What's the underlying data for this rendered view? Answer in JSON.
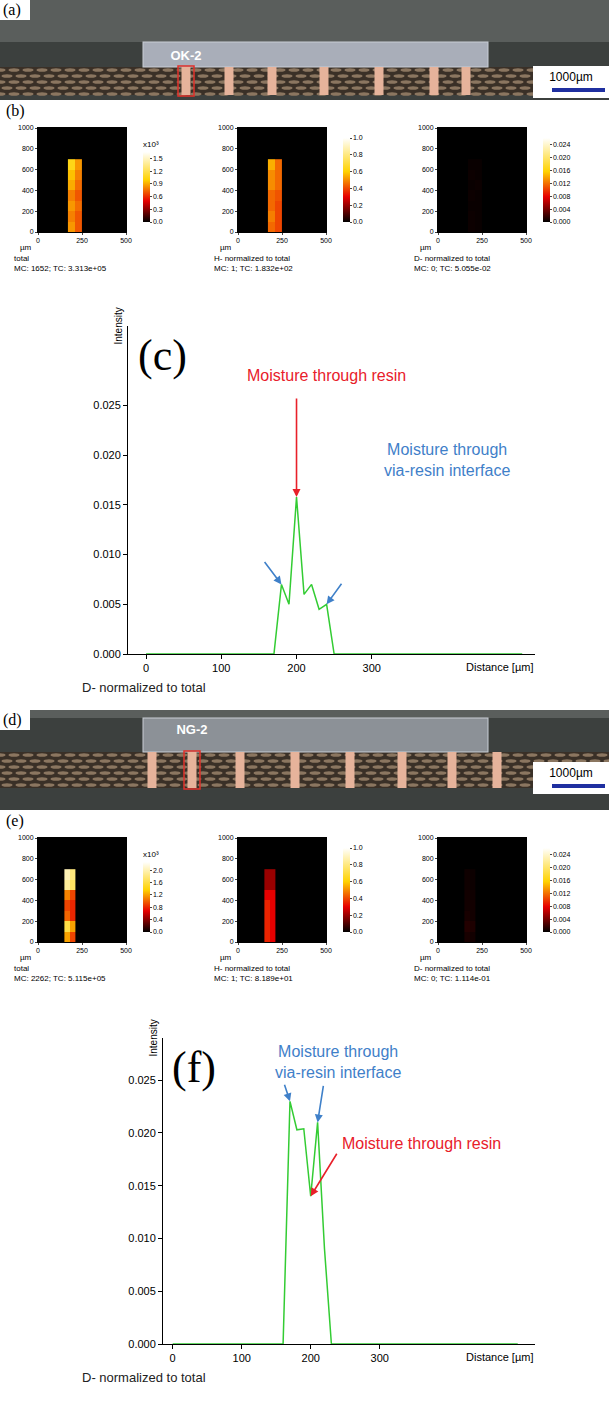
{
  "chart_data": [
    {
      "type": "photo",
      "label": "(a)",
      "sample": "OK-2",
      "scale_bar": "1000µm"
    },
    {
      "type": "heatmap",
      "label": "(b)",
      "panels": [
        {
          "caption": [
            "total",
            "MC: 1652; TC: 3.313e+05"
          ],
          "colorbar_title": "x10³",
          "x": [
            190,
            230
          ],
          "y": [
            50,
            150,
            250,
            350,
            450,
            550,
            650
          ],
          "z": [
            [
              0.85,
              0.7
            ],
            [
              0.8,
              0.7
            ],
            [
              0.85,
              0.75
            ],
            [
              0.8,
              0.7
            ],
            [
              0.9,
              0.75
            ],
            [
              0.95,
              0.8
            ],
            [
              1.05,
              0.85
            ]
          ],
          "zlim": [
            0,
            1.65
          ],
          "zticks": [
            {
              "value": 0,
              "label": "0.0"
            },
            0.3,
            0.6,
            0.9,
            1.2,
            1.5
          ],
          "xlabel": "µm",
          "xlim": [
            0,
            500
          ],
          "xticks": [
            0,
            250,
            500
          ],
          "ylim": [
            0,
            1000
          ],
          "yticks": [
            0,
            200,
            400,
            600,
            800,
            1000
          ]
        },
        {
          "caption": [
            "H- normalized to total",
            "MC: 1; TC: 1.832e+02"
          ],
          "x": [
            190,
            230
          ],
          "y": [
            50,
            150,
            250,
            350,
            450,
            550,
            650
          ],
          "z": [
            [
              0.45,
              0.4
            ],
            [
              0.48,
              0.4
            ],
            [
              0.45,
              0.4
            ],
            [
              0.45,
              0.42
            ],
            [
              0.5,
              0.45
            ],
            [
              0.5,
              0.45
            ],
            [
              0.55,
              0.45
            ]
          ],
          "zlim": [
            0,
            1
          ],
          "zticks": [
            {
              "value": 0,
              "label": "0.0"
            },
            0.2,
            0.4,
            0.6,
            0.8,
            {
              "value": 1,
              "label": "1.0"
            }
          ],
          "xlabel": "µm",
          "xlim": [
            0,
            500
          ],
          "xticks": [
            0,
            250,
            500
          ],
          "ylim": [
            0,
            1000
          ],
          "yticks": [
            0,
            200,
            400,
            600,
            800,
            1000
          ]
        },
        {
          "caption": [
            "D- normalized to total",
            "MC: 0; TC: 5.055e-02"
          ],
          "x": [
            190,
            230
          ],
          "y": [
            50,
            150,
            250,
            350,
            450,
            550,
            650
          ],
          "z": [
            [
              0.0004,
              0.0003
            ],
            [
              0.0004,
              0.0003
            ],
            [
              0.0003,
              0.0003
            ],
            [
              0.0004,
              0.0003
            ],
            [
              0.0003,
              0.0004
            ],
            [
              0.0004,
              0.0003
            ],
            [
              0.0003,
              0.0003
            ]
          ],
          "zlim": [
            0,
            0.026
          ],
          "zticks": [
            {
              "value": 0,
              "label": "0.000"
            },
            0.004,
            0.008,
            0.012,
            0.016,
            {
              "value": 0.02,
              "label": "0.020"
            },
            0.024
          ],
          "xlabel": "µm",
          "xlim": [
            0,
            500
          ],
          "xticks": [
            0,
            250,
            500
          ],
          "ylim": [
            0,
            1000
          ],
          "yticks": [
            0,
            200,
            400,
            600,
            800,
            1000
          ]
        }
      ]
    },
    {
      "type": "line",
      "label": "(c)",
      "title": "D- normalized to total",
      "xlabel": "Distance [µm]",
      "ylabel": "Intensity",
      "x": [
        0,
        170,
        180,
        190,
        200,
        210,
        220,
        230,
        240,
        250,
        500
      ],
      "values": [
        0,
        0,
        0.007,
        0.005,
        0.0158,
        0.006,
        0.007,
        0.0045,
        0.005,
        0,
        0
      ],
      "color": "#33cc33",
      "grid": false,
      "xlim": [
        -24,
        517
      ],
      "xticks": [
        0,
        100,
        200,
        300
      ],
      "ylim": [
        0,
        0.033
      ],
      "yticks": [
        {
          "value": 0,
          "label": "0.000"
        },
        0.005,
        {
          "value": 0.01,
          "label": "0.010"
        },
        0.015,
        {
          "value": 0.02,
          "label": "0.020"
        },
        0.025
      ],
      "annotations": [
        {
          "text": "Moisture through resin",
          "color": "#e8202a"
        },
        {
          "text": "Moisture through via-resin interface",
          "color": "#3f80c9"
        }
      ]
    },
    {
      "type": "photo",
      "label": "(d)",
      "sample": "NG-2",
      "scale_bar": "1000µm"
    },
    {
      "type": "heatmap",
      "label": "(e)",
      "panels": [
        {
          "caption": [
            "total",
            "MC: 2262; TC: 5.115e+05"
          ],
          "colorbar_title": "x10³",
          "x": [
            165,
            195
          ],
          "y": [
            50,
            150,
            250,
            350,
            450,
            550,
            650
          ],
          "z": [
            [
              1.2,
              0.9
            ],
            [
              1.6,
              1.2
            ],
            [
              1.0,
              0.8
            ],
            [
              0.9,
              0.8
            ],
            [
              1.1,
              0.9
            ],
            [
              1.9,
              1.7
            ],
            [
              2.0,
              1.8
            ]
          ],
          "zlim": [
            0,
            2.26
          ],
          "zticks": [
            {
              "value": 0,
              "label": "0.0"
            },
            0.4,
            0.8,
            1.2,
            1.6,
            {
              "value": 2,
              "label": "2.0"
            }
          ],
          "xlabel": "µm",
          "xlim": [
            0,
            500
          ],
          "xticks": [
            0,
            250,
            500
          ],
          "ylim": [
            0,
            1000
          ],
          "yticks": [
            0,
            200,
            400,
            600,
            800,
            1000
          ]
        },
        {
          "caption": [
            "H- normalized to total",
            "MC: 1; TC: 8.189e+01"
          ],
          "x": [
            165,
            195
          ],
          "y": [
            50,
            150,
            250,
            350,
            450,
            550,
            650
          ],
          "z": [
            [
              0.35,
              0.3
            ],
            [
              0.35,
              0.3
            ],
            [
              0.35,
              0.3
            ],
            [
              0.35,
              0.3
            ],
            [
              0.3,
              0.3
            ],
            [
              0.2,
              0.2
            ],
            [
              0.2,
              0.2
            ]
          ],
          "zlim": [
            0,
            1
          ],
          "zticks": [
            {
              "value": 0,
              "label": "0.0"
            },
            0.2,
            0.4,
            0.6,
            0.8,
            {
              "value": 1,
              "label": "1.0"
            }
          ],
          "xlabel": "µm",
          "xlim": [
            0,
            500
          ],
          "xticks": [
            0,
            250,
            500
          ],
          "ylim": [
            0,
            1000
          ],
          "yticks": [
            0,
            200,
            400,
            600,
            800,
            1000
          ]
        },
        {
          "caption": [
            "D- normalized to total",
            "MC: 0; TC: 1.114e-01"
          ],
          "x": [
            165,
            195
          ],
          "y": [
            50,
            150,
            250,
            350,
            450,
            550,
            650
          ],
          "z": [
            [
              0.0008,
              0.0006
            ],
            [
              0.0012,
              0.001
            ],
            [
              0.0008,
              0.0006
            ],
            [
              0.0006,
              0.0006
            ],
            [
              0.0006,
              0.0005
            ],
            [
              0.0005,
              0.0004
            ],
            [
              0.0005,
              0.0004
            ]
          ],
          "zlim": [
            0,
            0.026
          ],
          "zticks": [
            {
              "value": 0,
              "label": "0.000"
            },
            0.004,
            0.008,
            0.012,
            0.016,
            {
              "value": 0.02,
              "label": "0.020"
            },
            0.024
          ],
          "xlabel": "µm",
          "xlim": [
            0,
            500
          ],
          "xticks": [
            0,
            250,
            500
          ],
          "ylim": [
            0,
            1000
          ],
          "yticks": [
            0,
            200,
            400,
            600,
            800,
            1000
          ]
        }
      ]
    },
    {
      "type": "line",
      "label": "(f)",
      "title": "D- normalized to total",
      "xlabel": "Distance [µm]",
      "ylabel": "Intensity",
      "x": [
        0,
        160,
        170,
        180,
        190,
        200,
        210,
        220,
        230,
        500
      ],
      "values": [
        0,
        0,
        0.023,
        0.0203,
        0.0204,
        0.014,
        0.021,
        0.009,
        0,
        0
      ],
      "color": "#33cc33",
      "grid": false,
      "xlim": [
        -14,
        525
      ],
      "xticks": [
        0,
        100,
        200,
        300
      ],
      "ylim": [
        0,
        0.029
      ],
      "yticks": [
        {
          "value": 0,
          "label": "0.000"
        },
        0.005,
        {
          "value": 0.01,
          "label": "0.010"
        },
        0.015,
        {
          "value": 0.02,
          "label": "0.020"
        },
        0.025
      ],
      "annotations": [
        {
          "text": "Moisture through resin",
          "color": "#e8202a"
        },
        {
          "text": "Moisture through via-resin interface",
          "color": "#3f80c9"
        }
      ]
    }
  ]
}
